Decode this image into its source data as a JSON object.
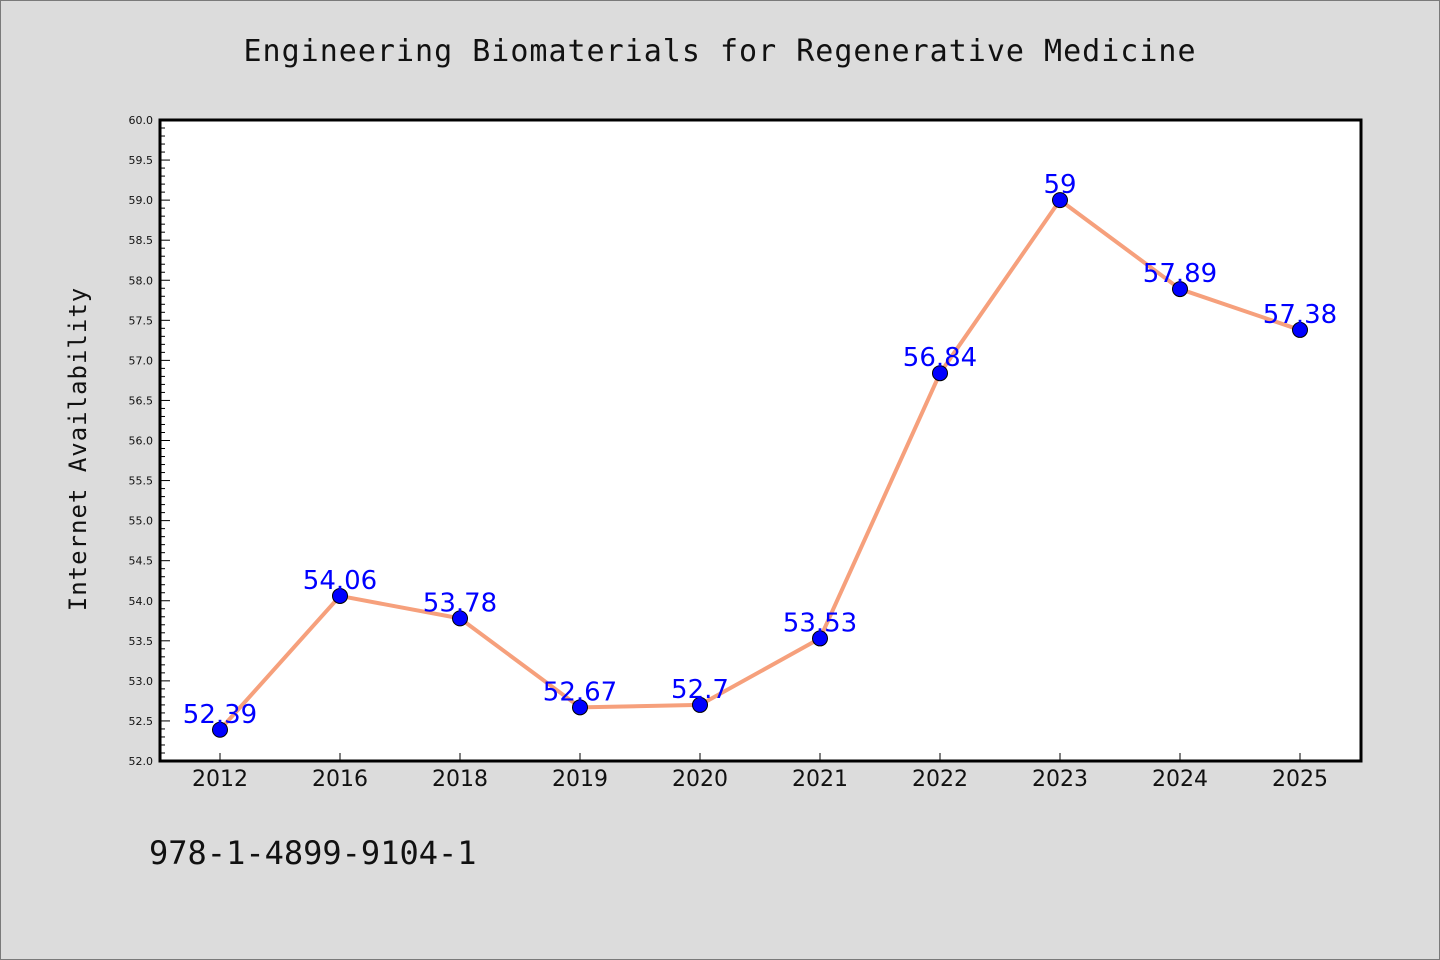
{
  "title": "Engineering Biomaterials for Regenerative Medicine",
  "footer_text": "978-1-4899-9104-1",
  "colors": {
    "background": "#dcdcdc",
    "plot_background": "#ffffff",
    "line": "#f6a07c",
    "marker": "#0000ff",
    "data_label": "#0000ff"
  },
  "chart_data": {
    "type": "line",
    "title": "Engineering Biomaterials for Regenerative Medicine",
    "xlabel": "",
    "ylabel": "Internet Availability",
    "categories": [
      "2012",
      "2016",
      "2018",
      "2019",
      "2020",
      "2021",
      "2022",
      "2023",
      "2024",
      "2025"
    ],
    "series": [
      {
        "values": [
          52.39,
          54.06,
          53.78,
          52.67,
          52.7,
          53.53,
          56.84,
          59,
          57.89,
          57.38
        ],
        "labels": [
          "52.39",
          "54.06",
          "53.78",
          "52.67",
          "52.7",
          "53.53",
          "56.84",
          "59",
          "57.89",
          "57.38"
        ]
      }
    ],
    "ylim": [
      52.0,
      60.0
    ],
    "yticks": [
      "52.0",
      "52.5",
      "53.0",
      "53.5",
      "54.0",
      "54.5",
      "55.0",
      "55.5",
      "56.0",
      "56.5",
      "57.0",
      "57.5",
      "58.0",
      "58.5",
      "59.0",
      "59.5",
      "60.0"
    ],
    "grid": false,
    "legend": "none"
  }
}
